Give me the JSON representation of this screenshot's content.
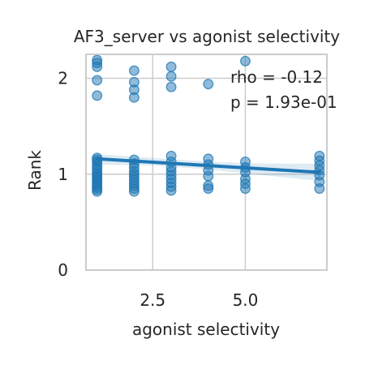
{
  "chart_data": {
    "type": "scatter",
    "title": "AF3_server vs agonist selectivity",
    "xlabel": "agonist selectivity",
    "ylabel": "Rank",
    "xlim": [
      0.7,
      7.2
    ],
    "ylim": [
      0,
      2.25
    ],
    "xticks": [
      2.5,
      5.0
    ],
    "xtick_labels": [
      "2.5",
      "5.0"
    ],
    "yticks": [
      0,
      1,
      2
    ],
    "ytick_labels": [
      "0",
      "1",
      "2"
    ],
    "grid": true,
    "annotations": [
      "rho = -0.12",
      "p = 1.93e-01"
    ],
    "colors": {
      "points": "#1f77b4",
      "line": "#1f77b4",
      "band": "#1f77b4",
      "grid": "#cccccc",
      "spine": "#cccccc"
    },
    "points": [
      {
        "x": 1.0,
        "y": 2.19
      },
      {
        "x": 1.0,
        "y": 2.16
      },
      {
        "x": 1.0,
        "y": 2.12
      },
      {
        "x": 1.0,
        "y": 1.98
      },
      {
        "x": 1.0,
        "y": 1.82
      },
      {
        "x": 1.0,
        "y": 1.17
      },
      {
        "x": 1.0,
        "y": 1.15
      },
      {
        "x": 1.0,
        "y": 1.13
      },
      {
        "x": 1.0,
        "y": 1.1
      },
      {
        "x": 1.0,
        "y": 1.07
      },
      {
        "x": 1.0,
        "y": 1.05
      },
      {
        "x": 1.0,
        "y": 1.02
      },
      {
        "x": 1.0,
        "y": 1.0
      },
      {
        "x": 1.0,
        "y": 0.98
      },
      {
        "x": 1.0,
        "y": 0.96
      },
      {
        "x": 1.0,
        "y": 0.94
      },
      {
        "x": 1.0,
        "y": 0.92
      },
      {
        "x": 1.0,
        "y": 0.9
      },
      {
        "x": 1.0,
        "y": 0.88
      },
      {
        "x": 1.0,
        "y": 0.86
      },
      {
        "x": 1.0,
        "y": 0.84
      },
      {
        "x": 1.0,
        "y": 0.82
      },
      {
        "x": 2.0,
        "y": 2.08
      },
      {
        "x": 2.0,
        "y": 1.96
      },
      {
        "x": 2.0,
        "y": 1.88
      },
      {
        "x": 2.0,
        "y": 1.8
      },
      {
        "x": 2.0,
        "y": 1.15
      },
      {
        "x": 2.0,
        "y": 1.11
      },
      {
        "x": 2.0,
        "y": 1.07
      },
      {
        "x": 2.0,
        "y": 1.03
      },
      {
        "x": 2.0,
        "y": 1.0
      },
      {
        "x": 2.0,
        "y": 0.97
      },
      {
        "x": 2.0,
        "y": 0.94
      },
      {
        "x": 2.0,
        "y": 0.91
      },
      {
        "x": 2.0,
        "y": 0.88
      },
      {
        "x": 2.0,
        "y": 0.85
      },
      {
        "x": 2.0,
        "y": 0.82
      },
      {
        "x": 3.0,
        "y": 2.12
      },
      {
        "x": 3.0,
        "y": 2.02
      },
      {
        "x": 3.0,
        "y": 1.91
      },
      {
        "x": 3.0,
        "y": 1.19
      },
      {
        "x": 3.0,
        "y": 1.13
      },
      {
        "x": 3.0,
        "y": 1.07
      },
      {
        "x": 3.0,
        "y": 1.03
      },
      {
        "x": 3.0,
        "y": 0.99
      },
      {
        "x": 3.0,
        "y": 0.95
      },
      {
        "x": 3.0,
        "y": 0.91
      },
      {
        "x": 3.0,
        "y": 0.87
      },
      {
        "x": 3.0,
        "y": 0.83
      },
      {
        "x": 4.0,
        "y": 1.94
      },
      {
        "x": 4.0,
        "y": 1.16
      },
      {
        "x": 4.0,
        "y": 1.1
      },
      {
        "x": 4.0,
        "y": 1.04
      },
      {
        "x": 4.0,
        "y": 0.98
      },
      {
        "x": 4.0,
        "y": 0.88
      },
      {
        "x": 4.0,
        "y": 0.85
      },
      {
        "x": 5.0,
        "y": 2.18
      },
      {
        "x": 5.0,
        "y": 1.13
      },
      {
        "x": 5.0,
        "y": 1.07
      },
      {
        "x": 5.0,
        "y": 1.02
      },
      {
        "x": 5.0,
        "y": 0.95
      },
      {
        "x": 5.0,
        "y": 0.9
      },
      {
        "x": 5.0,
        "y": 0.85
      },
      {
        "x": 7.0,
        "y": 1.19
      },
      {
        "x": 7.0,
        "y": 1.14
      },
      {
        "x": 7.0,
        "y": 1.09
      },
      {
        "x": 7.0,
        "y": 1.04
      },
      {
        "x": 7.0,
        "y": 0.99
      },
      {
        "x": 7.0,
        "y": 0.92
      },
      {
        "x": 7.0,
        "y": 0.85
      }
    ],
    "regression": {
      "x": [
        1.0,
        7.0
      ],
      "y": [
        1.16,
        1.02
      ]
    },
    "confidence_band": {
      "x": [
        1.0,
        2.5,
        4.0,
        5.5,
        7.0
      ],
      "upper": [
        1.21,
        1.17,
        1.13,
        1.11,
        1.11
      ],
      "lower": [
        1.1,
        1.09,
        1.05,
        0.99,
        0.93
      ]
    }
  }
}
